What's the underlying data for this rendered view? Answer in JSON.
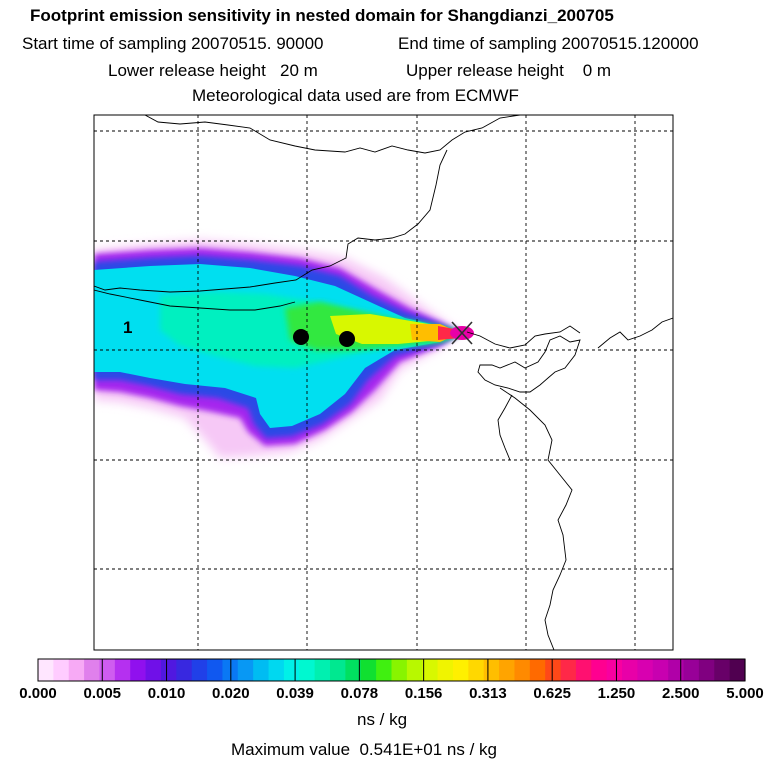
{
  "header": {
    "title": "Footprint emission sensitivity in nested domain for Shangdianzi_200705",
    "start_label": "Start time of sampling 20070515. 90000",
    "end_label": "End time of sampling 20070515.120000",
    "lower_label": "Lower release height   20 m",
    "upper_label": "Upper release height    0 m",
    "met_label": "Meteorological data used are from ECMWF"
  },
  "map": {
    "release_label": "1",
    "markers": [
      "receptor-cross-marker",
      "black-dot-marker",
      "black-dot-marker"
    ]
  },
  "legend": {
    "ticks": [
      "0.000",
      "0.005",
      "0.010",
      "0.020",
      "0.039",
      "0.078",
      "0.156",
      "0.313",
      "0.625",
      "1.250",
      "2.500",
      "5.000"
    ],
    "unit": "ns / kg",
    "max_label": "Maximum value  0.541E+01 ns / kg",
    "colors": [
      "#ffe6ff",
      "#ffccff",
      "#f7aaf5",
      "#e080ec",
      "#cf5cf0",
      "#b530f0",
      "#9010ee",
      "#7010e8",
      "#5018e0",
      "#3828e0",
      "#2040e8",
      "#1058f0",
      "#0a78f4",
      "#0898f4",
      "#00bcf2",
      "#00d8f0",
      "#00f0e8",
      "#00f8d0",
      "#00f0b0",
      "#00e890",
      "#00e060",
      "#10e030",
      "#40f010",
      "#88f400",
      "#b8f800",
      "#d8f800",
      "#f0f400",
      "#fff000",
      "#ffd800",
      "#ffbe00",
      "#ffa400",
      "#ff8a00",
      "#ff6a00",
      "#ff4818",
      "#ff2848",
      "#ff1070",
      "#ff0090",
      "#f800a0",
      "#e800a8",
      "#d800b0",
      "#c800b0",
      "#b000a8",
      "#980098",
      "#800080",
      "#680068",
      "#500050"
    ]
  }
}
